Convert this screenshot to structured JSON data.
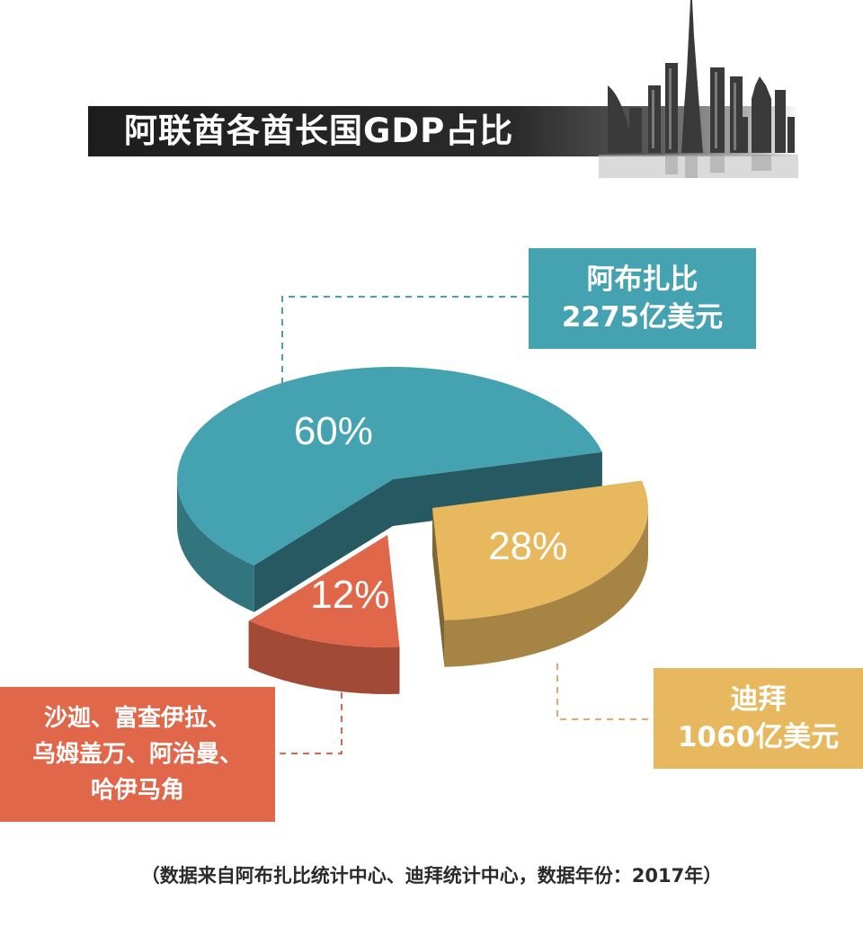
{
  "title": "阿联酋各酋长国GDP占比",
  "colors": {
    "abu_dhabi": "#45a2b0",
    "dubai": "#e7b85d",
    "others": "#e0674a",
    "title_bar": "#222222"
  },
  "callouts": {
    "abu_dhabi": {
      "line1": "阿布扎比",
      "line2": "2275亿美元"
    },
    "dubai": {
      "line1": "迪拜",
      "line2": "1060亿美元"
    },
    "others": {
      "line1": "沙迦、富查伊拉、",
      "line2": "乌姆盖万、阿治曼、",
      "line3": "哈伊马角"
    }
  },
  "footnote": "（数据来自阿布扎比统计中心、迪拜统计中心，数据年份：2017年）",
  "chart_data": {
    "type": "pie",
    "style": "3d-exploded",
    "unit": "%",
    "slices": [
      {
        "label": "阿布扎比",
        "value": 60,
        "display": "60%",
        "amount": "2275亿美元"
      },
      {
        "label": "迪拜",
        "value": 28,
        "display": "28%",
        "amount": "1060亿美元"
      },
      {
        "label": "沙迦、富查伊拉、乌姆盖万、阿治曼、哈伊马角",
        "value": 12,
        "display": "12%"
      }
    ]
  }
}
